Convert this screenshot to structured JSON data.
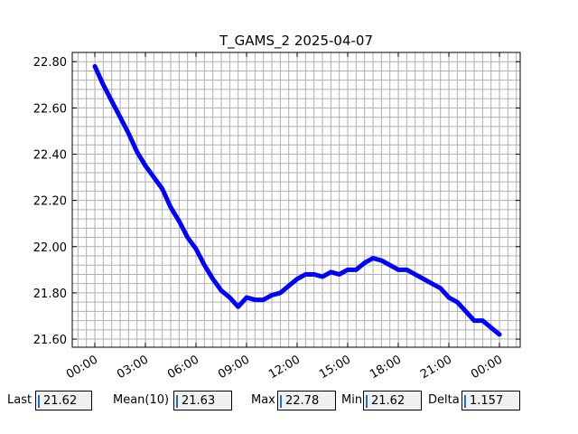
{
  "chart_data": {
    "type": "line",
    "title": "T_GAMS_2 2025-04-07",
    "x": [
      0,
      0.5,
      1,
      1.5,
      2,
      2.5,
      3,
      3.5,
      4,
      4.5,
      5,
      5.5,
      6,
      6.5,
      7,
      7.5,
      8,
      8.5,
      9,
      9.5,
      10,
      10.5,
      11,
      11.5,
      12,
      12.5,
      13,
      13.5,
      14,
      14.5,
      15,
      15.5,
      16,
      16.5,
      17,
      17.5,
      18,
      18.5,
      19,
      19.5,
      20,
      20.5,
      21,
      21.5,
      22,
      22.5,
      23,
      23.5,
      24
    ],
    "values": [
      22.78,
      22.7,
      22.63,
      22.56,
      22.49,
      22.41,
      22.35,
      22.3,
      22.25,
      22.17,
      22.11,
      22.04,
      21.99,
      21.92,
      21.86,
      21.81,
      21.78,
      21.74,
      21.78,
      21.77,
      21.77,
      21.79,
      21.8,
      21.83,
      21.86,
      21.88,
      21.88,
      21.87,
      21.89,
      21.88,
      21.9,
      21.9,
      21.93,
      21.95,
      21.94,
      21.92,
      21.9,
      21.9,
      21.88,
      21.86,
      21.84,
      21.82,
      21.78,
      21.76,
      21.72,
      21.68,
      21.68,
      21.65,
      21.62
    ],
    "color": "#0000ff",
    "xlim": [
      -1.34,
      25.23
    ],
    "ylim": [
      21.565,
      22.84
    ],
    "xticks": [
      {
        "value": 0,
        "label": "00:00"
      },
      {
        "value": 3,
        "label": "03:00"
      },
      {
        "value": 6,
        "label": "06:00"
      },
      {
        "value": 9,
        "label": "09:00"
      },
      {
        "value": 12,
        "label": "12:00"
      },
      {
        "value": 15,
        "label": "15:00"
      },
      {
        "value": 18,
        "label": "18:00"
      },
      {
        "value": 21,
        "label": "21:00"
      },
      {
        "value": 24,
        "label": "00:00"
      }
    ],
    "yticks": [
      {
        "value": 21.6,
        "label": "21.60"
      },
      {
        "value": 21.8,
        "label": "21.80"
      },
      {
        "value": 22,
        "label": "22.00"
      },
      {
        "value": 22.2,
        "label": "22.20"
      },
      {
        "value": 22.4,
        "label": "22.40"
      },
      {
        "value": 22.6,
        "label": "22.60"
      },
      {
        "value": 22.8,
        "label": "22.80"
      }
    ],
    "xminorticks": [
      -1,
      -0.5,
      0,
      0.5,
      1,
      1.5,
      2,
      2.5,
      3,
      3.5,
      4,
      4.5,
      5,
      5.5,
      6,
      6.5,
      7,
      7.5,
      8,
      8.5,
      9,
      9.5,
      10,
      10.5,
      11,
      11.5,
      12,
      12.5,
      13,
      13.5,
      14,
      14.5,
      15,
      15.5,
      16,
      16.5,
      17,
      17.5,
      18,
      18.5,
      19,
      19.5,
      20,
      20.5,
      21,
      21.5,
      22,
      22.5,
      23,
      23.5,
      24,
      24.5,
      25
    ],
    "yminorticks": [
      21.6,
      21.64,
      21.68,
      21.72,
      21.76,
      21.8,
      21.84,
      21.88,
      21.92,
      21.96,
      22,
      22.04,
      22.08,
      22.12,
      22.16,
      22.2,
      22.24,
      22.28,
      22.32,
      22.36,
      22.4,
      22.44,
      22.48,
      22.52,
      22.56,
      22.6,
      22.64,
      22.68,
      22.72,
      22.76,
      22.8
    ],
    "grid": true
  },
  "stats": [
    {
      "label": "Last",
      "value": 21.62
    },
    {
      "label": "Mean(10)",
      "value": 21.63
    },
    {
      "label": "Max",
      "value": 22.78
    },
    {
      "label": "Min",
      "value": 21.62
    },
    {
      "label": "Delta",
      "value": 1.157
    }
  ]
}
